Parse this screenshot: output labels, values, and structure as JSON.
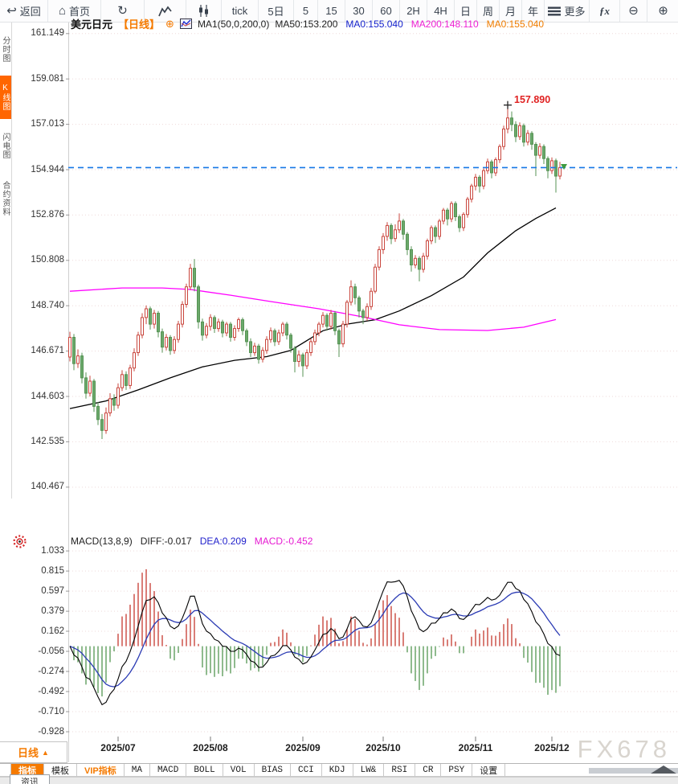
{
  "toolbar": {
    "items": [
      {
        "id": "back",
        "icon": "back",
        "label": "返回"
      },
      {
        "id": "home",
        "icon": "home",
        "label": "首页"
      },
      {
        "id": "refresh",
        "icon": "refresh"
      },
      {
        "id": "line-chart",
        "icon": "line-chart"
      },
      {
        "id": "candle-chart",
        "icon": "candle-chart"
      },
      {
        "id": "tick",
        "label": "tick"
      },
      {
        "id": "5d",
        "label": "5日"
      },
      {
        "id": "m5",
        "label": "5"
      },
      {
        "id": "m15",
        "label": "15"
      },
      {
        "id": "m30",
        "label": "30"
      },
      {
        "id": "m60",
        "label": "60"
      },
      {
        "id": "h2",
        "label": "2H"
      },
      {
        "id": "h4",
        "label": "4H"
      },
      {
        "id": "d",
        "label": "日"
      },
      {
        "id": "w",
        "label": "周"
      },
      {
        "id": "mo",
        "label": "月"
      },
      {
        "id": "y",
        "label": "年"
      },
      {
        "id": "more",
        "icon": "menu",
        "label": "更多"
      },
      {
        "id": "fx",
        "label": "ƒx"
      },
      {
        "id": "zoom-out",
        "icon": "zoom-out"
      },
      {
        "id": "zoom-in",
        "icon": "zoom-in"
      }
    ]
  },
  "sidebar": {
    "items": [
      {
        "id": "time-share",
        "label": "分时图",
        "active": false
      },
      {
        "id": "kline",
        "label": "K线图",
        "active": true
      },
      {
        "id": "lightning",
        "label": "闪电图",
        "active": false
      },
      {
        "id": "contract-info",
        "label": "合约资料",
        "active": false
      }
    ]
  },
  "symbol_header": {
    "symbol": "美元日元",
    "period_tag": "【日线】",
    "add_icon": "⊕",
    "ma_settings": "MA1(50,0,200,0)",
    "ma_values": [
      {
        "label": "MA50:153.200",
        "color": "#222222"
      },
      {
        "label": "MA0:155.040",
        "color": "#1522cc"
      },
      {
        "label": "MA200:148.110",
        "color": "#ee1fd3"
      },
      {
        "label": "MA0:155.040",
        "color": "#f07d00"
      }
    ]
  },
  "macd_panel": {
    "labels": [
      {
        "text": "MACD(13,8,9)",
        "color": "#222222"
      },
      {
        "text": "DIFF:-0.017",
        "color": "#222222"
      },
      {
        "text": "DEA:0.209",
        "color": "#2222cc"
      },
      {
        "text": "MACD:-0.452",
        "color": "#e61ad2"
      }
    ]
  },
  "chart_data": [
    {
      "type": "candlestick",
      "title": "美元日元 日线 (USD/JPY daily)",
      "ylim": [
        139.5,
        162.2
      ],
      "y_ticks": [
        "161.149",
        "159.081",
        "157.013",
        "154.944",
        "152.876",
        "150.808",
        "148.740",
        "146.671",
        "144.603",
        "142.535",
        "140.467"
      ],
      "x_ticks": [
        {
          "label": "2025/07",
          "candle_index": 12
        },
        {
          "label": "2025/08",
          "candle_index": 35
        },
        {
          "label": "2025/09",
          "candle_index": 58
        },
        {
          "label": "2025/10",
          "candle_index": 78
        },
        {
          "label": "2025/11",
          "candle_index": 101
        },
        {
          "label": "2025/12",
          "candle_index": 120
        }
      ],
      "candles": [
        [
          146.4,
          147.55,
          146.2,
          147.3
        ],
        [
          147.3,
          147.45,
          145.8,
          146.1
        ],
        [
          146.1,
          146.75,
          145.9,
          146.45
        ],
        [
          146.45,
          146.6,
          145.2,
          145.45
        ],
        [
          145.45,
          145.7,
          144.5,
          144.75
        ],
        [
          144.75,
          145.55,
          144.6,
          145.3
        ],
        [
          145.3,
          145.4,
          143.9,
          144.15
        ],
        [
          144.15,
          144.35,
          143.3,
          143.55
        ],
        [
          143.55,
          143.8,
          142.66,
          143.05
        ],
        [
          143.05,
          144.1,
          142.9,
          143.85
        ],
        [
          143.85,
          144.75,
          143.7,
          144.5
        ],
        [
          144.5,
          144.7,
          143.95,
          144.2
        ],
        [
          144.2,
          145.2,
          144.05,
          145.0
        ],
        [
          145.0,
          145.8,
          144.85,
          145.6
        ],
        [
          145.6,
          145.75,
          144.9,
          145.1
        ],
        [
          145.1,
          146.05,
          144.95,
          145.9
        ],
        [
          145.9,
          146.8,
          145.75,
          146.6
        ],
        [
          146.6,
          147.55,
          146.45,
          147.4
        ],
        [
          147.4,
          148.4,
          147.25,
          148.2
        ],
        [
          148.2,
          148.75,
          147.9,
          148.6
        ],
        [
          148.6,
          148.7,
          147.65,
          147.9
        ],
        [
          147.9,
          148.55,
          147.7,
          148.4
        ],
        [
          148.4,
          148.5,
          147.3,
          147.55
        ],
        [
          147.55,
          147.7,
          146.6,
          146.85
        ],
        [
          146.85,
          147.45,
          146.7,
          147.3
        ],
        [
          147.3,
          147.4,
          146.5,
          146.7
        ],
        [
          146.7,
          147.35,
          146.55,
          147.2
        ],
        [
          147.2,
          148.05,
          147.05,
          147.9
        ],
        [
          147.9,
          148.95,
          147.75,
          148.8
        ],
        [
          148.8,
          149.75,
          148.65,
          149.6
        ],
        [
          149.6,
          150.65,
          149.45,
          150.45
        ],
        [
          150.45,
          150.87,
          149.4,
          149.6
        ],
        [
          149.6,
          149.7,
          147.7,
          148.0
        ],
        [
          148.0,
          148.15,
          147.15,
          147.4
        ],
        [
          147.4,
          147.95,
          147.25,
          147.8
        ],
        [
          147.8,
          148.35,
          147.6,
          148.2
        ],
        [
          148.2,
          148.3,
          147.5,
          147.7
        ],
        [
          147.7,
          148.15,
          147.55,
          148.0
        ],
        [
          148.0,
          148.1,
          147.3,
          147.5
        ],
        [
          147.5,
          148.0,
          147.35,
          147.9
        ],
        [
          147.9,
          148.0,
          147.1,
          147.3
        ],
        [
          147.3,
          147.85,
          147.15,
          147.7
        ],
        [
          147.7,
          148.2,
          147.55,
          148.1
        ],
        [
          148.1,
          148.2,
          147.4,
          147.6
        ],
        [
          147.6,
          147.7,
          146.9,
          147.1
        ],
        [
          147.1,
          147.25,
          146.4,
          146.6
        ],
        [
          146.6,
          147.05,
          146.45,
          146.9
        ],
        [
          146.9,
          147.0,
          146.1,
          146.3
        ],
        [
          146.3,
          146.85,
          146.15,
          146.7
        ],
        [
          146.7,
          147.35,
          146.55,
          147.2
        ],
        [
          147.2,
          147.75,
          147.05,
          147.6
        ],
        [
          147.6,
          147.7,
          146.9,
          147.1
        ],
        [
          147.1,
          147.65,
          146.95,
          147.5
        ],
        [
          147.5,
          148.0,
          147.35,
          147.9
        ],
        [
          147.9,
          148.0,
          147.2,
          147.4
        ],
        [
          147.4,
          147.5,
          146.6,
          146.8
        ],
        [
          146.8,
          146.9,
          145.7,
          146.2
        ],
        [
          146.2,
          146.7,
          145.95,
          146.5
        ],
        [
          146.5,
          146.6,
          145.5,
          146.0
        ],
        [
          146.0,
          146.75,
          145.85,
          146.6
        ],
        [
          146.6,
          147.25,
          146.45,
          147.1
        ],
        [
          147.1,
          147.65,
          146.95,
          147.5
        ],
        [
          147.5,
          148.0,
          147.35,
          147.9
        ],
        [
          147.9,
          148.45,
          147.75,
          148.3
        ],
        [
          148.3,
          148.4,
          147.6,
          147.8
        ],
        [
          147.8,
          148.55,
          147.65,
          148.4
        ],
        [
          148.4,
          148.5,
          147.4,
          147.6
        ],
        [
          147.6,
          147.7,
          146.4,
          147.0
        ],
        [
          147.0,
          148.05,
          146.85,
          147.9
        ],
        [
          147.9,
          149.0,
          147.75,
          148.9
        ],
        [
          148.9,
          149.9,
          148.75,
          149.6
        ],
        [
          149.6,
          149.75,
          148.8,
          149.1
        ],
        [
          149.1,
          149.2,
          148.2,
          148.5
        ],
        [
          148.5,
          148.6,
          147.9,
          148.2
        ],
        [
          148.2,
          148.85,
          148.05,
          148.7
        ],
        [
          148.7,
          149.55,
          148.55,
          149.4
        ],
        [
          149.4,
          150.65,
          149.3,
          150.5
        ],
        [
          150.5,
          151.45,
          150.35,
          151.3
        ],
        [
          151.3,
          152.05,
          151.1,
          151.9
        ],
        [
          151.9,
          152.55,
          151.7,
          152.4
        ],
        [
          152.4,
          152.5,
          151.55,
          151.8
        ],
        [
          151.8,
          152.45,
          151.65,
          152.2
        ],
        [
          152.2,
          152.95,
          152.05,
          152.6
        ],
        [
          152.6,
          152.7,
          151.75,
          152.0
        ],
        [
          152.0,
          152.1,
          151.05,
          151.3
        ],
        [
          151.3,
          151.45,
          150.3,
          150.6
        ],
        [
          150.6,
          151.05,
          150.45,
          150.9
        ],
        [
          150.9,
          151.0,
          149.85,
          150.4
        ],
        [
          150.4,
          151.15,
          150.25,
          151.0
        ],
        [
          151.0,
          151.8,
          150.85,
          151.7
        ],
        [
          151.7,
          152.4,
          151.55,
          152.3
        ],
        [
          152.3,
          152.4,
          151.6,
          151.9
        ],
        [
          151.9,
          152.7,
          151.75,
          152.6
        ],
        [
          152.6,
          153.2,
          152.45,
          153.1
        ],
        [
          153.1,
          153.2,
          152.4,
          152.7
        ],
        [
          152.7,
          153.5,
          152.55,
          153.4
        ],
        [
          153.4,
          153.5,
          152.6,
          152.8
        ],
        [
          152.8,
          152.9,
          152.1,
          152.3
        ],
        [
          152.3,
          153.0,
          152.15,
          152.9
        ],
        [
          152.9,
          153.7,
          152.75,
          153.6
        ],
        [
          153.6,
          154.3,
          153.45,
          154.2
        ],
        [
          154.2,
          154.75,
          154.0,
          154.6
        ],
        [
          154.6,
          154.7,
          153.9,
          154.2
        ],
        [
          154.2,
          155.0,
          154.05,
          154.9
        ],
        [
          154.9,
          155.45,
          154.75,
          155.3
        ],
        [
          155.3,
          155.4,
          154.55,
          154.8
        ],
        [
          154.8,
          155.5,
          154.65,
          155.4
        ],
        [
          155.4,
          156.1,
          155.25,
          156.0
        ],
        [
          156.0,
          156.95,
          155.85,
          156.8
        ],
        [
          156.8,
          157.89,
          156.6,
          157.3
        ],
        [
          157.3,
          157.6,
          156.7,
          157.0
        ],
        [
          157.0,
          157.15,
          156.2,
          156.45
        ],
        [
          156.45,
          157.1,
          156.3,
          156.95
        ],
        [
          156.95,
          157.05,
          156.0,
          156.2
        ],
        [
          156.2,
          156.75,
          156.05,
          156.6
        ],
        [
          156.6,
          156.7,
          155.85,
          156.1
        ],
        [
          156.1,
          156.2,
          154.65,
          155.6
        ],
        [
          155.6,
          156.15,
          155.45,
          156.0
        ],
        [
          156.0,
          156.1,
          155.2,
          155.45
        ],
        [
          155.45,
          155.55,
          154.55,
          154.9
        ],
        [
          154.9,
          155.5,
          154.75,
          155.35
        ],
        [
          155.35,
          155.45,
          153.9,
          154.65
        ],
        [
          154.65,
          155.3,
          154.5,
          155.04
        ]
      ],
      "overlays": [
        {
          "name": "MA50",
          "color": "#000000",
          "points": [
            [
              0,
              144.05
            ],
            [
              9,
              144.4
            ],
            [
              17,
              144.9
            ],
            [
              25,
              145.45
            ],
            [
              33,
              145.95
            ],
            [
              41,
              146.25
            ],
            [
              49,
              146.42
            ],
            [
              55,
              146.7
            ],
            [
              59,
              147.15
            ],
            [
              63,
              147.6
            ],
            [
              69,
              147.9
            ],
            [
              76,
              148.1
            ],
            [
              82,
              148.5
            ],
            [
              90,
              149.2
            ],
            [
              98,
              150.05
            ],
            [
              104,
              151.15
            ],
            [
              111,
              152.16
            ],
            [
              116,
              152.72
            ],
            [
              121,
              153.2
            ]
          ]
        },
        {
          "name": "MA200",
          "color": "#ff00ff",
          "points": [
            [
              0,
              149.4
            ],
            [
              13,
              149.55
            ],
            [
              23,
              149.55
            ],
            [
              30,
              149.48
            ],
            [
              40,
              149.22
            ],
            [
              50,
              148.93
            ],
            [
              62,
              148.6
            ],
            [
              73,
              148.23
            ],
            [
              82,
              147.87
            ],
            [
              92,
              147.65
            ],
            [
              104,
              147.61
            ],
            [
              113,
              147.76
            ],
            [
              121,
              148.11
            ]
          ]
        }
      ],
      "current_price_line": {
        "value": 155.04,
        "style": "dashed",
        "color": "#1677e6"
      },
      "annotations": [
        {
          "type": "peak",
          "text": "157.890",
          "candle_index": 109,
          "price": 157.89
        }
      ]
    },
    {
      "type": "macd",
      "label": "MACD(13,8,9)",
      "params": [
        13,
        8,
        9
      ],
      "last_values": {
        "diff": -0.017,
        "dea": 0.209,
        "macd": -0.452
      },
      "y_ticks": [
        "1.033",
        "0.815",
        "0.597",
        "0.379",
        "0.162",
        "-0.056",
        "-0.274",
        "-0.492",
        "-0.710",
        "-0.928"
      ],
      "diff_color": "#000000",
      "dea_color": "#2b3bb4",
      "hist_up_color": "#c9463d",
      "hist_down_color": "#5f9e5d"
    }
  ],
  "bottom": {
    "period_label": "日线",
    "period_arrow": "▲",
    "tabs": [
      {
        "label": "指标",
        "state": "active"
      },
      {
        "label": "模板"
      },
      {
        "label": "VIP指标",
        "accent": true
      },
      {
        "label": "MA",
        "mono": true
      },
      {
        "label": "MACD",
        "mono": true
      },
      {
        "label": "BOLL",
        "mono": true
      },
      {
        "label": "VOL",
        "mono": true
      },
      {
        "label": "BIAS",
        "mono": true
      },
      {
        "label": "CCI",
        "mono": true
      },
      {
        "label": "KDJ",
        "mono": true
      },
      {
        "label": "LW&",
        "mono": true
      },
      {
        "label": "RSI",
        "mono": true
      },
      {
        "label": "CR",
        "mono": true
      },
      {
        "label": "PSY",
        "mono": true
      },
      {
        "label": "设置"
      }
    ],
    "corner_tab": "资讯"
  },
  "watermark": "FX678",
  "colors": {
    "accent_orange": "#f57a00",
    "candle_up": "#c9463d",
    "candle_down": "#6ba96b",
    "ma50": "#000000",
    "ma200": "#ff00ff",
    "current_line": "#1677e6",
    "peak_text": "#e02222",
    "grid": "#eed9d9"
  }
}
